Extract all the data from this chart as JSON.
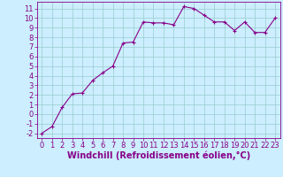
{
  "x": [
    0,
    1,
    2,
    3,
    4,
    5,
    6,
    7,
    8,
    9,
    10,
    11,
    12,
    13,
    14,
    15,
    16,
    17,
    18,
    19,
    20,
    21,
    22,
    23
  ],
  "y": [
    -2,
    -1.3,
    0.7,
    2.1,
    2.2,
    3.5,
    4.3,
    5.0,
    7.4,
    7.5,
    9.6,
    9.5,
    9.5,
    9.3,
    11.2,
    11.0,
    10.3,
    9.6,
    9.6,
    8.7,
    9.6,
    8.5,
    8.5,
    10.0
  ],
  "line_color": "#880088",
  "marker": "+",
  "bg_color": "#cceeff",
  "grid_color": "#99cccc",
  "xlabel": "Windchill (Refroidissement éolien,°C)",
  "xlim_min": -0.5,
  "xlim_max": 23.5,
  "ylim_min": -2.5,
  "ylim_max": 11.7,
  "yticks": [
    -2,
    -1,
    0,
    1,
    2,
    3,
    4,
    5,
    6,
    7,
    8,
    9,
    10,
    11
  ],
  "xticks": [
    0,
    1,
    2,
    3,
    4,
    5,
    6,
    7,
    8,
    9,
    10,
    11,
    12,
    13,
    14,
    15,
    16,
    17,
    18,
    19,
    20,
    21,
    22,
    23
  ],
  "xlabel_color": "#880088",
  "tick_color": "#880088",
  "spine_color": "#880088",
  "font_size": 6,
  "xlabel_fontsize": 7,
  "marker_size": 3,
  "line_width": 0.8
}
